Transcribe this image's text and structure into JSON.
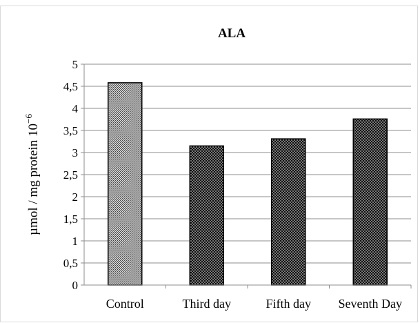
{
  "chart_data": {
    "type": "bar",
    "title": "ALA",
    "ylabel": "µmol / mg protein 10",
    "ylabel_exponent": "−6",
    "xlabel": "",
    "categories": [
      "Control",
      "Third day",
      "Fifth day",
      "Seventh Day"
    ],
    "values": [
      4.58,
      3.15,
      3.31,
      3.76
    ],
    "ylim": [
      0,
      5
    ],
    "yticks": [
      {
        "value": 0,
        "label": "0"
      },
      {
        "value": 0.5,
        "label": "0,5"
      },
      {
        "value": 1,
        "label": "1"
      },
      {
        "value": 1.5,
        "label": "1,5"
      },
      {
        "value": 2,
        "label": "2"
      },
      {
        "value": 2.5,
        "label": "2,5"
      },
      {
        "value": 3,
        "label": "3"
      },
      {
        "value": 3.5,
        "label": "3,5"
      },
      {
        "value": 4,
        "label": "4"
      },
      {
        "value": 4.5,
        "label": "4,5"
      },
      {
        "value": 5,
        "label": "5"
      }
    ],
    "grid": true,
    "legend": "none",
    "bar_patterns": [
      "light-crosshatch",
      "dark-dots",
      "dark-dots",
      "dark-dots"
    ],
    "colors": {
      "grid": "#8c8c8c",
      "bar_edge": "#000000",
      "frame": "#d9d9d9"
    }
  }
}
